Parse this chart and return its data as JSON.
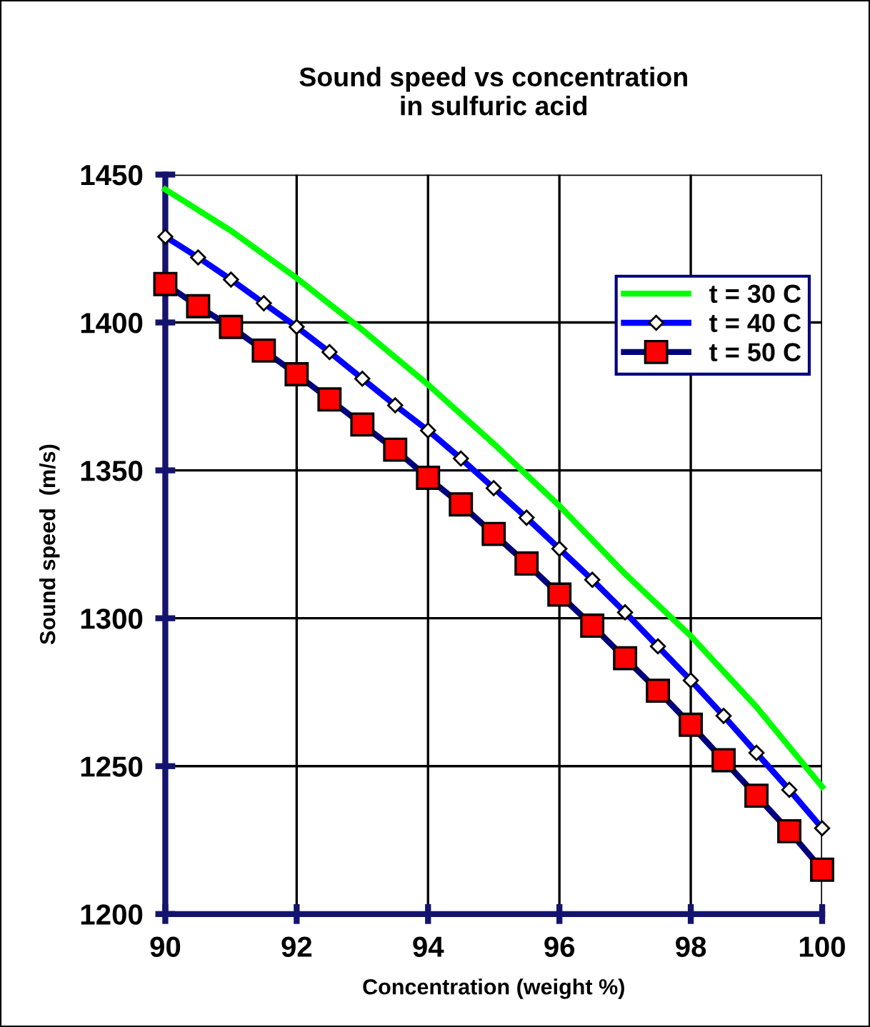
{
  "chart_data": {
    "type": "line",
    "title": "Sound speed vs concentration\nin sulfuric acid",
    "xlabel": "Concentration (weight %)",
    "ylabel": "Sound speed  (m/s)",
    "xlim": [
      90,
      100
    ],
    "xticks": [
      90,
      92,
      94,
      96,
      98,
      100
    ],
    "ylim": [
      1200,
      1450
    ],
    "yticks": [
      1200,
      1250,
      1300,
      1350,
      1400,
      1450
    ],
    "grid": true,
    "legend": "top right",
    "series": [
      {
        "name": "t = 30 C",
        "color": "#00ff00",
        "marker": "none",
        "x": [
          90,
          91,
          92,
          93,
          94,
          95,
          96,
          97,
          98,
          99,
          100
        ],
        "values": [
          1445,
          1431,
          1415,
          1397.5,
          1379,
          1359,
          1338,
          1315,
          1294,
          1270,
          1243
        ]
      },
      {
        "name": "t = 40 C",
        "color": "#0000ff",
        "marker": "diamond",
        "x": [
          90,
          90.5,
          91,
          91.5,
          92,
          92.5,
          93,
          93.5,
          94,
          94.5,
          95,
          95.5,
          96,
          96.5,
          97,
          97.5,
          98,
          98.5,
          99,
          99.5,
          100
        ],
        "values": [
          1429,
          1422,
          1414.5,
          1406.5,
          1398.5,
          1390,
          1381,
          1372,
          1363.5,
          1354,
          1344,
          1334,
          1323.5,
          1313,
          1302,
          1290.5,
          1279,
          1267,
          1254.5,
          1242,
          1229
        ]
      },
      {
        "name": "t = 50 C",
        "color": "#000080",
        "marker": "square",
        "x": [
          90,
          90.5,
          91,
          91.5,
          92,
          92.5,
          93,
          93.5,
          94,
          94.5,
          95,
          95.5,
          96,
          96.5,
          97,
          97.5,
          98,
          98.5,
          99,
          99.5,
          100
        ],
        "values": [
          1413,
          1405.5,
          1398.5,
          1390.5,
          1382.5,
          1374,
          1365.5,
          1357,
          1347.5,
          1338.5,
          1328.5,
          1318.5,
          1308,
          1297.5,
          1286.5,
          1275.5,
          1264,
          1252,
          1240,
          1228,
          1215
        ]
      }
    ]
  }
}
